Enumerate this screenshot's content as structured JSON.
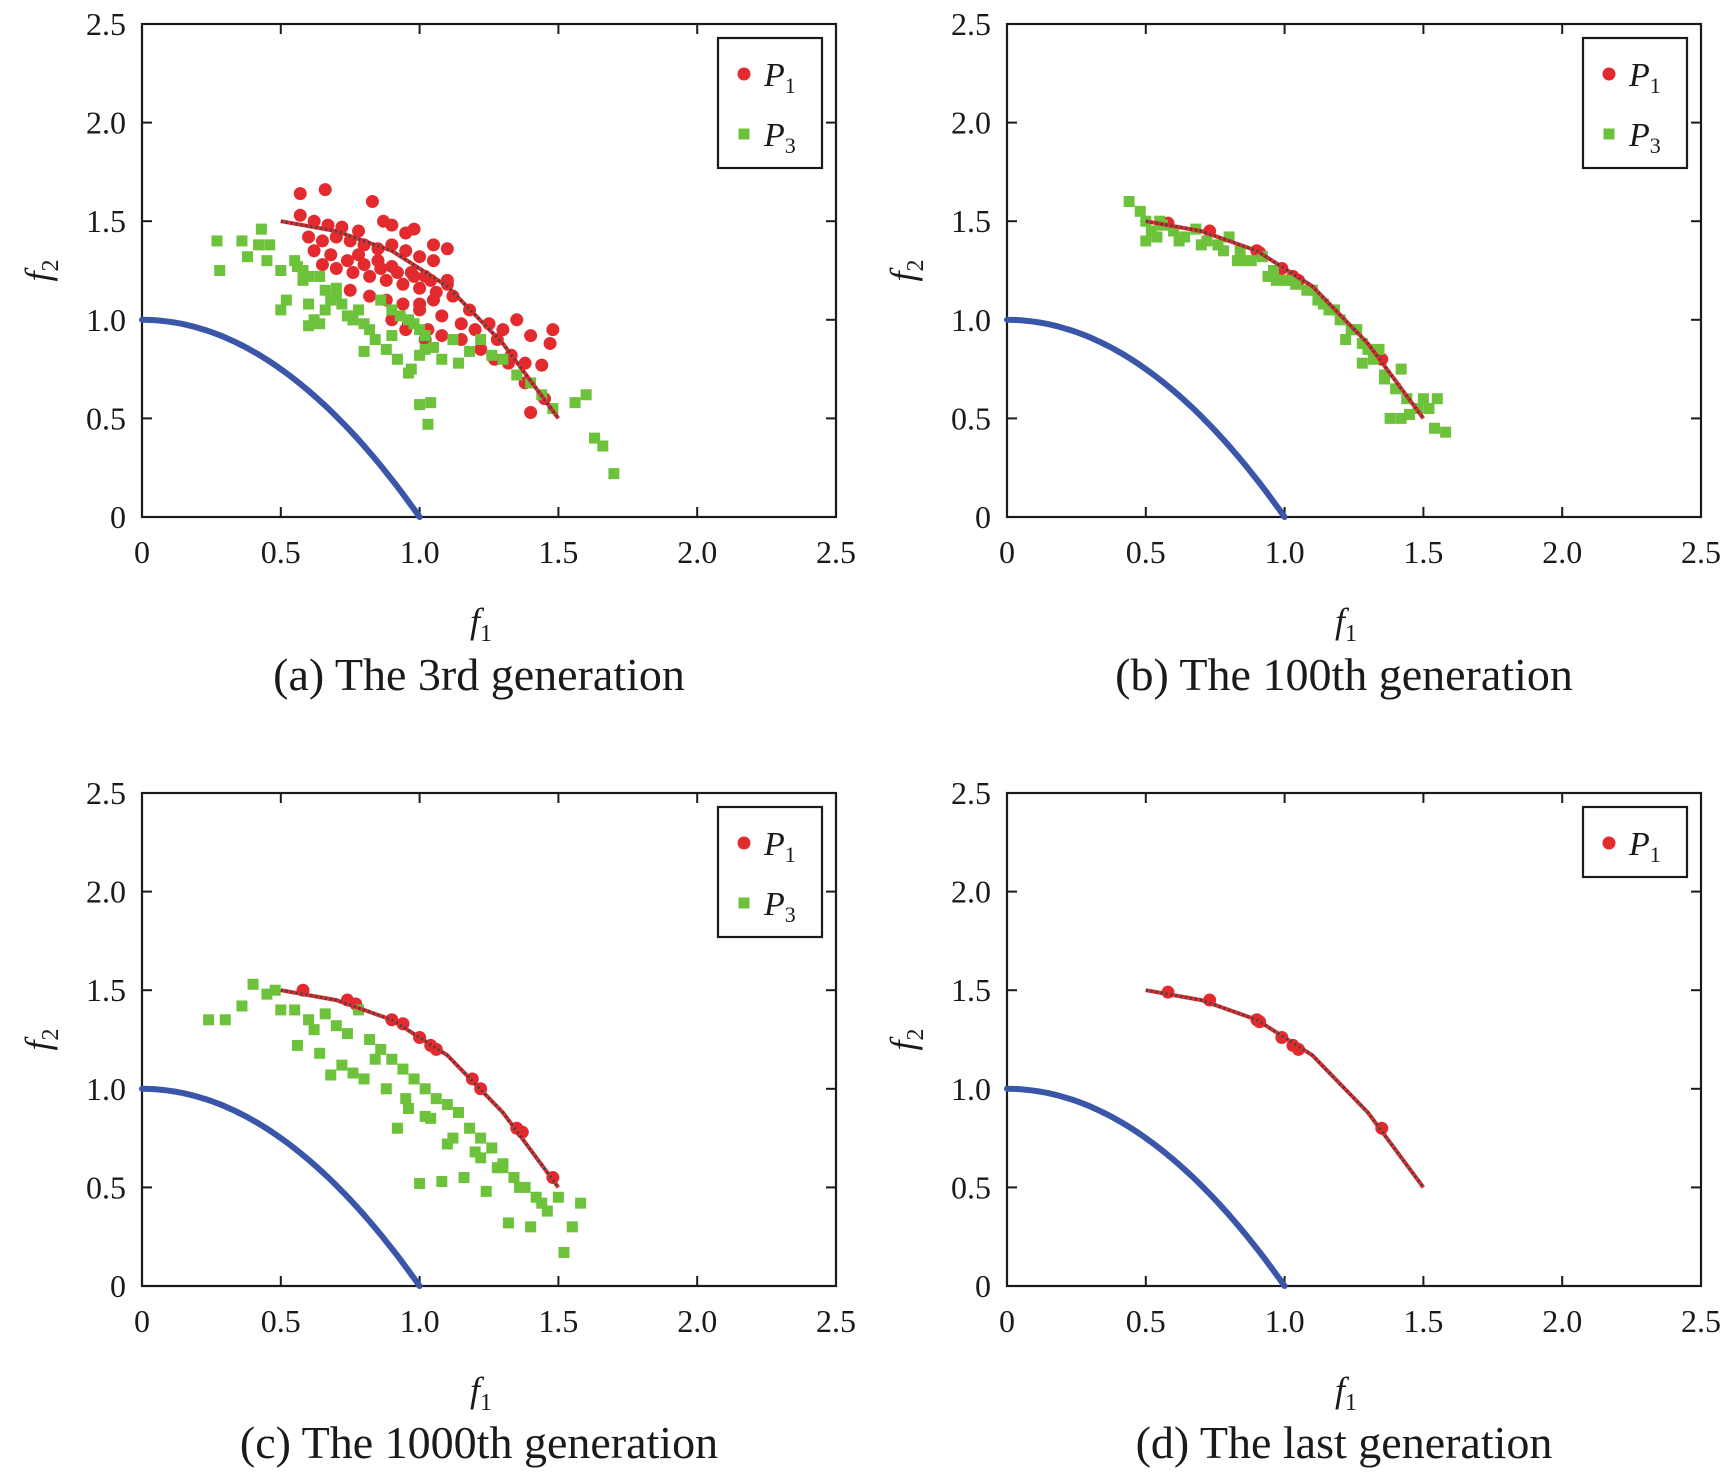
{
  "colors": {
    "p1": "#e32b2f",
    "p3": "#6cc23a",
    "true_front": "#3a56a8",
    "reference_front": "#444444",
    "axis": "#1a1a1a"
  },
  "chart_data": [
    {
      "type": "scatter",
      "caption": "(a) The 3rd generation",
      "xlabel": "f",
      "xlabel_sub": "1",
      "ylabel": "f",
      "ylabel_sub": "2",
      "xlim": [
        0,
        2.5
      ],
      "ylim": [
        0,
        2.5
      ],
      "xticks": [
        0,
        0.5,
        1.0,
        1.5,
        2.0,
        2.5
      ],
      "xtick_labels": [
        "0",
        "0.5",
        "1.0",
        "1.5",
        "2.0",
        "2.5"
      ],
      "yticks": [
        0,
        0.5,
        1.0,
        1.5,
        2.0,
        2.5
      ],
      "ytick_labels": [
        "0",
        "0.5",
        "1.0",
        "1.5",
        "2.0",
        "2.5"
      ],
      "grid": false,
      "legend": {
        "position": "top-right",
        "entries": [
          {
            "label": "P",
            "sub": "1",
            "marker": "circle",
            "color_key": "p1"
          },
          {
            "label": "P",
            "sub": "3",
            "marker": "square",
            "color_key": "p3"
          }
        ]
      },
      "series": [
        {
          "marker": "circle",
          "color_key": "p1",
          "x": [
            0.57,
            0.66,
            0.57,
            0.62,
            0.67,
            0.72,
            0.78,
            0.83,
            0.87,
            0.9,
            0.95,
            0.98,
            1.05,
            1.1,
            0.6,
            0.65,
            0.7,
            0.75,
            0.8,
            0.85,
            0.9,
            0.95,
            1.0,
            1.05,
            0.62,
            0.68,
            0.74,
            0.8,
            0.86,
            0.92,
            0.98,
            1.04,
            1.1,
            0.7,
            0.76,
            0.82,
            0.88,
            0.94,
            1.0,
            1.06,
            1.12,
            0.75,
            0.82,
            0.88,
            0.94,
            1.0,
            1.08,
            0.85,
            0.9,
            0.97,
            1.02,
            1.1,
            1.18,
            0.9,
            0.96,
            1.03,
            1.08,
            1.15,
            1.2,
            1.25,
            1.3,
            1.35,
            1.4,
            1.47,
            0.95,
            1.0,
            1.05,
            1.22,
            1.28,
            1.33,
            1.38,
            1.44,
            1.48,
            1.38,
            1.45,
            1.4,
            1.27,
            1.32,
            0.65,
            0.78,
            1.02,
            1.15
          ],
          "y": [
            1.64,
            1.66,
            1.53,
            1.5,
            1.48,
            1.47,
            1.45,
            1.6,
            1.5,
            1.48,
            1.44,
            1.46,
            1.38,
            1.36,
            1.42,
            1.4,
            1.42,
            1.4,
            1.38,
            1.36,
            1.38,
            1.35,
            1.32,
            1.3,
            1.35,
            1.33,
            1.3,
            1.28,
            1.26,
            1.24,
            1.22,
            1.2,
            1.2,
            1.26,
            1.24,
            1.22,
            1.2,
            1.18,
            1.16,
            1.14,
            1.12,
            1.15,
            1.12,
            1.1,
            1.08,
            1.05,
            1.02,
            1.3,
            1.27,
            1.24,
            1.22,
            1.18,
            1.05,
            1.0,
            0.98,
            0.95,
            0.92,
            0.9,
            0.95,
            0.98,
            0.95,
            1.0,
            0.92,
            0.88,
            0.95,
            1.08,
            1.1,
            0.85,
            0.9,
            0.82,
            0.78,
            0.77,
            0.95,
            0.68,
            0.6,
            0.53,
            0.8,
            0.78,
            1.28,
            1.33,
            0.9,
            0.98
          ]
        },
        {
          "marker": "square",
          "color_key": "p3",
          "x": [
            0.27,
            0.28,
            0.36,
            0.42,
            0.38,
            0.43,
            0.45,
            0.46,
            0.5,
            0.52,
            0.5,
            0.55,
            0.56,
            0.58,
            0.6,
            0.6,
            0.62,
            0.64,
            0.66,
            0.68,
            0.66,
            0.7,
            0.72,
            0.74,
            0.76,
            0.78,
            0.8,
            0.82,
            0.84,
            0.86,
            0.9,
            0.93,
            0.96,
            0.98,
            1.0,
            1.02,
            0.88,
            0.92,
            0.97,
            1.0,
            1.05,
            1.08,
            1.12,
            1.14,
            1.18,
            1.22,
            1.26,
            1.3,
            1.35,
            1.4,
            1.44,
            1.48,
            1.56,
            1.6,
            1.63,
            1.66,
            1.7,
            1.0,
            1.04,
            0.9,
            0.96,
            0.64,
            0.7,
            0.76,
            0.8,
            0.58,
            0.6,
            1.03,
            1.02
          ],
          "y": [
            1.4,
            1.25,
            1.4,
            1.38,
            1.32,
            1.46,
            1.3,
            1.38,
            1.05,
            1.1,
            1.25,
            1.3,
            1.27,
            1.2,
            1.22,
            1.08,
            1.0,
            0.98,
            1.05,
            1.1,
            1.15,
            1.12,
            1.08,
            1.02,
            1.0,
            1.05,
            0.98,
            0.95,
            0.9,
            1.1,
            1.05,
            1.02,
            1.0,
            0.98,
            0.95,
            0.92,
            0.85,
            0.8,
            0.75,
            0.82,
            0.86,
            0.8,
            0.9,
            0.78,
            0.84,
            0.9,
            0.82,
            0.8,
            0.72,
            0.68,
            0.62,
            0.55,
            0.58,
            0.62,
            0.4,
            0.36,
            0.22,
            0.57,
            0.58,
            0.92,
            0.73,
            1.22,
            1.16,
            1.0,
            0.84,
            1.25,
            0.97,
            0.47,
            0.85
          ]
        },
        {
          "style": "reference-line",
          "color_key": "reference_front",
          "x": [
            0.5,
            0.7,
            0.9,
            1.1,
            1.3,
            1.5
          ],
          "y": [
            1.5,
            1.45,
            1.35,
            1.17,
            0.88,
            0.5
          ]
        },
        {
          "style": "true-front",
          "color_key": "true_front",
          "x": [
            0,
            0.2,
            0.4,
            0.6,
            0.8,
            1.0
          ],
          "y": [
            1.0,
            0.96,
            0.84,
            0.64,
            0.36,
            0
          ]
        }
      ]
    },
    {
      "type": "scatter",
      "caption": "(b) The 100th generation",
      "xlabel": "f",
      "xlabel_sub": "1",
      "ylabel": "f",
      "ylabel_sub": "2",
      "xlim": [
        0,
        2.5
      ],
      "ylim": [
        0,
        2.5
      ],
      "xticks": [
        0,
        0.5,
        1.0,
        1.5,
        2.0,
        2.5
      ],
      "xtick_labels": [
        "0",
        "0.5",
        "1.0",
        "1.5",
        "2.0",
        "2.5"
      ],
      "yticks": [
        0,
        0.5,
        1.0,
        1.5,
        2.0,
        2.5
      ],
      "ytick_labels": [
        "0",
        "0.5",
        "1.0",
        "1.5",
        "2.0",
        "2.5"
      ],
      "grid": false,
      "legend": {
        "position": "top-right",
        "entries": [
          {
            "label": "P",
            "sub": "1",
            "marker": "circle",
            "color_key": "p1"
          },
          {
            "label": "P",
            "sub": "3",
            "marker": "square",
            "color_key": "p3"
          }
        ]
      },
      "series": [
        {
          "marker": "circle",
          "color_key": "p1",
          "x": [
            0.58,
            0.73,
            0.9,
            0.91,
            0.99,
            1.03,
            1.05,
            1.35
          ],
          "y": [
            1.49,
            1.45,
            1.35,
            1.34,
            1.26,
            1.22,
            1.2,
            0.8
          ]
        },
        {
          "marker": "square",
          "color_key": "p3",
          "x": [
            0.44,
            0.48,
            0.5,
            0.52,
            0.54,
            0.56,
            0.5,
            0.55,
            0.6,
            0.64,
            0.68,
            0.72,
            0.76,
            0.8,
            0.84,
            0.88,
            0.92,
            0.96,
            1.0,
            1.04,
            1.08,
            1.12,
            1.16,
            1.2,
            1.24,
            1.28,
            1.32,
            1.36,
            1.4,
            1.44,
            1.48,
            0.7,
            0.78,
            0.86,
            0.94,
            1.02,
            1.1,
            1.18,
            1.26,
            1.34,
            1.42,
            1.5,
            1.55,
            1.58,
            1.38,
            1.45,
            1.54,
            1.22,
            1.3,
            0.62,
            0.83,
            0.97,
            1.14,
            1.42,
            1.52,
            1.28,
            1.36
          ],
          "y": [
            1.6,
            1.55,
            1.5,
            1.45,
            1.42,
            1.48,
            1.4,
            1.5,
            1.45,
            1.42,
            1.46,
            1.4,
            1.38,
            1.42,
            1.35,
            1.3,
            1.32,
            1.25,
            1.2,
            1.18,
            1.15,
            1.1,
            1.05,
            1.0,
            0.95,
            0.88,
            0.8,
            0.72,
            0.65,
            0.6,
            0.55,
            1.38,
            1.35,
            1.3,
            1.22,
            1.2,
            1.15,
            1.05,
            0.95,
            0.85,
            0.75,
            0.6,
            0.6,
            0.43,
            0.5,
            0.52,
            0.45,
            0.9,
            0.85,
            1.4,
            1.3,
            1.2,
            1.08,
            0.5,
            0.55,
            0.78,
            0.7
          ]
        },
        {
          "style": "reference-line",
          "color_key": "reference_front",
          "x": [
            0.5,
            0.7,
            0.9,
            1.1,
            1.3,
            1.5
          ],
          "y": [
            1.5,
            1.45,
            1.35,
            1.17,
            0.88,
            0.5
          ]
        },
        {
          "style": "true-front",
          "color_key": "true_front",
          "x": [
            0,
            0.2,
            0.4,
            0.6,
            0.8,
            1.0
          ],
          "y": [
            1.0,
            0.96,
            0.84,
            0.64,
            0.36,
            0
          ]
        }
      ]
    },
    {
      "type": "scatter",
      "caption": "(c) The 1000th generation",
      "xlabel": "f",
      "xlabel_sub": "1",
      "ylabel": "f",
      "ylabel_sub": "2",
      "xlim": [
        0,
        2.5
      ],
      "ylim": [
        0,
        2.5
      ],
      "xticks": [
        0,
        0.5,
        1.0,
        1.5,
        2.0,
        2.5
      ],
      "xtick_labels": [
        "0",
        "0.5",
        "1.0",
        "1.5",
        "2.0",
        "2.5"
      ],
      "yticks": [
        0,
        0.5,
        1.0,
        1.5,
        2.0,
        2.5
      ],
      "ytick_labels": [
        "0",
        "0.5",
        "1.0",
        "1.5",
        "2.0",
        "2.5"
      ],
      "grid": false,
      "legend": {
        "position": "top-right",
        "entries": [
          {
            "label": "P",
            "sub": "1",
            "marker": "circle",
            "color_key": "p1"
          },
          {
            "label": "P",
            "sub": "3",
            "marker": "square",
            "color_key": "p3"
          }
        ]
      },
      "series": [
        {
          "marker": "circle",
          "color_key": "p1",
          "x": [
            0.58,
            0.74,
            0.77,
            0.9,
            0.94,
            1.0,
            1.04,
            1.06,
            1.19,
            1.22,
            1.35,
            1.37,
            1.48
          ],
          "y": [
            1.5,
            1.45,
            1.43,
            1.35,
            1.33,
            1.26,
            1.22,
            1.2,
            1.05,
            1.0,
            0.8,
            0.78,
            0.55
          ]
        },
        {
          "marker": "square",
          "color_key": "p3",
          "x": [
            0.24,
            0.3,
            0.36,
            0.4,
            0.45,
            0.48,
            0.5,
            0.55,
            0.6,
            0.62,
            0.66,
            0.7,
            0.74,
            0.78,
            0.82,
            0.86,
            0.9,
            0.94,
            0.98,
            1.02,
            1.06,
            1.1,
            1.14,
            1.18,
            1.22,
            1.26,
            1.3,
            1.34,
            1.38,
            1.42,
            1.46,
            1.5,
            1.55,
            1.58,
            0.56,
            0.64,
            0.72,
            0.8,
            0.88,
            0.96,
            1.04,
            1.12,
            1.2,
            1.28,
            1.36,
            1.44,
            1.52,
            0.92,
            1.0,
            1.08,
            1.16,
            1.24,
            1.32,
            1.4,
            0.68,
            0.76,
            0.84,
            0.95,
            1.02,
            1.1,
            1.22,
            1.3
          ],
          "y": [
            1.35,
            1.35,
            1.42,
            1.53,
            1.48,
            1.5,
            1.4,
            1.4,
            1.35,
            1.3,
            1.38,
            1.32,
            1.28,
            1.4,
            1.25,
            1.2,
            1.15,
            1.1,
            1.05,
            1.0,
            0.95,
            0.92,
            0.88,
            0.8,
            0.75,
            0.7,
            0.62,
            0.55,
            0.5,
            0.45,
            0.38,
            0.45,
            0.3,
            0.42,
            1.22,
            1.18,
            1.12,
            1.05,
            1.0,
            0.9,
            0.85,
            0.75,
            0.68,
            0.6,
            0.5,
            0.42,
            0.17,
            0.8,
            0.52,
            0.53,
            0.55,
            0.48,
            0.32,
            0.3,
            1.07,
            1.08,
            1.15,
            0.95,
            0.86,
            0.72,
            0.65,
            0.6
          ]
        },
        {
          "style": "reference-line",
          "color_key": "reference_front",
          "x": [
            0.5,
            0.7,
            0.9,
            1.1,
            1.3,
            1.5
          ],
          "y": [
            1.5,
            1.45,
            1.35,
            1.17,
            0.88,
            0.5
          ]
        },
        {
          "style": "true-front",
          "color_key": "true_front",
          "x": [
            0,
            0.2,
            0.4,
            0.6,
            0.8,
            1.0
          ],
          "y": [
            1.0,
            0.96,
            0.84,
            0.64,
            0.36,
            0
          ]
        }
      ]
    },
    {
      "type": "scatter",
      "caption": "(d) The last generation",
      "xlabel": "f",
      "xlabel_sub": "1",
      "ylabel": "f",
      "ylabel_sub": "2",
      "xlim": [
        0,
        2.5
      ],
      "ylim": [
        0,
        2.5
      ],
      "xticks": [
        0,
        0.5,
        1.0,
        1.5,
        2.0,
        2.5
      ],
      "xtick_labels": [
        "0",
        "0.5",
        "1.0",
        "1.5",
        "2.0",
        "2.5"
      ],
      "yticks": [
        0,
        0.5,
        1.0,
        1.5,
        2.0,
        2.5
      ],
      "ytick_labels": [
        "0",
        "0.5",
        "1.0",
        "1.5",
        "2.0",
        "2.5"
      ],
      "grid": false,
      "legend": {
        "position": "top-right",
        "entries": [
          {
            "label": "P",
            "sub": "1",
            "marker": "circle",
            "color_key": "p1"
          }
        ]
      },
      "series": [
        {
          "marker": "circle",
          "color_key": "p1",
          "x": [
            0.58,
            0.73,
            0.9,
            0.91,
            0.99,
            1.03,
            1.05,
            1.35
          ],
          "y": [
            1.49,
            1.45,
            1.35,
            1.34,
            1.26,
            1.22,
            1.2,
            0.8
          ]
        },
        {
          "style": "reference-line",
          "color_key": "reference_front",
          "x": [
            0.5,
            0.7,
            0.9,
            1.1,
            1.3,
            1.5
          ],
          "y": [
            1.5,
            1.45,
            1.35,
            1.17,
            0.88,
            0.5
          ]
        },
        {
          "style": "true-front",
          "color_key": "true_front",
          "x": [
            0,
            0.2,
            0.4,
            0.6,
            0.8,
            1.0
          ],
          "y": [
            1.0,
            0.96,
            0.84,
            0.64,
            0.36,
            0
          ]
        }
      ]
    }
  ]
}
